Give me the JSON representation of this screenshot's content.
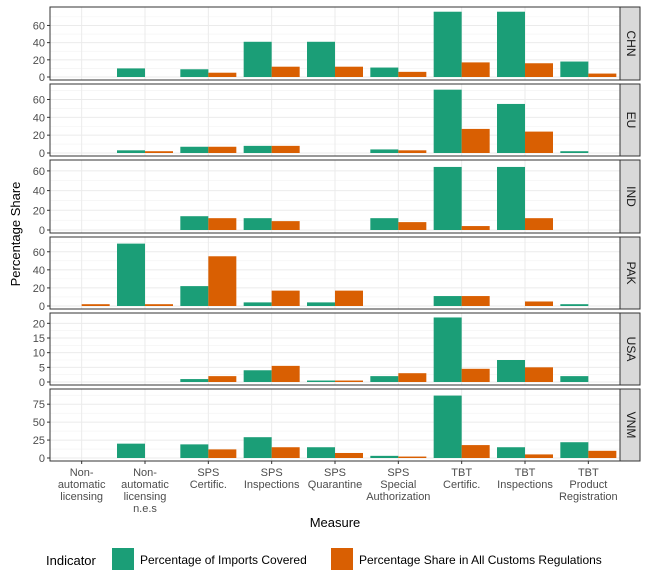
{
  "chart_data": {
    "type": "bar",
    "xlabel": "Measure",
    "ylabel": "Percentage Share",
    "categories": [
      [
        "Non-",
        "automatic",
        "licensing"
      ],
      [
        "Non-",
        "automatic",
        "licensing",
        "n.e.s"
      ],
      [
        "SPS",
        "Certific."
      ],
      [
        "SPS",
        "Inspections"
      ],
      [
        "SPS",
        "Quarantine"
      ],
      [
        "SPS",
        "Special",
        "Authorization"
      ],
      [
        "TBT",
        "Certific."
      ],
      [
        "TBT",
        "Inspections"
      ],
      [
        "TBT",
        "Product",
        "Registration"
      ]
    ],
    "legend": {
      "title": "Indicator",
      "position": "bottom",
      "entries": [
        "Percentage of Imports Covered",
        "Percentage Share in All Customs Regulations"
      ]
    },
    "colors": {
      "imports": "#1b9e77",
      "customs": "#d95f02"
    },
    "facets": [
      {
        "name": "CHN",
        "ylim": [
          0,
          78
        ],
        "ticks": [
          0,
          20,
          40,
          60
        ],
        "imports": [
          0,
          10,
          9,
          41,
          41,
          11,
          76,
          76,
          18
        ],
        "customs": [
          0,
          0,
          5,
          12,
          12,
          6,
          17,
          16,
          4
        ]
      },
      {
        "name": "EU",
        "ylim": [
          0,
          74
        ],
        "ticks": [
          0,
          20,
          40,
          60
        ],
        "imports": [
          0,
          3,
          7,
          8,
          0,
          4,
          71,
          55,
          2
        ],
        "customs": [
          0,
          2,
          7,
          8,
          0,
          3,
          27,
          24,
          0
        ]
      },
      {
        "name": "IND",
        "ylim": [
          0,
          68
        ],
        "ticks": [
          0,
          20,
          40,
          60
        ],
        "imports": [
          0,
          0,
          14,
          12,
          0,
          12,
          64,
          64,
          0
        ],
        "customs": [
          0,
          0,
          12,
          9,
          0,
          8,
          4,
          12,
          0
        ]
      },
      {
        "name": "PAK",
        "ylim": [
          0,
          73
        ],
        "ticks": [
          0,
          20,
          40,
          60
        ],
        "imports": [
          0,
          69,
          22,
          4,
          4,
          0,
          11,
          0,
          2
        ],
        "customs": [
          2,
          2,
          55,
          17,
          17,
          0,
          11,
          5,
          0
        ]
      },
      {
        "name": "USA",
        "ylim": [
          0,
          22.5
        ],
        "ticks": [
          0,
          5,
          10,
          15,
          20
        ],
        "imports": [
          0,
          0,
          1,
          4,
          0.5,
          2,
          22,
          7.5,
          2
        ],
        "customs": [
          0,
          0,
          2,
          5.5,
          0.5,
          3,
          4.5,
          5,
          0
        ]
      },
      {
        "name": "VNM",
        "ylim": [
          0,
          92
        ],
        "ticks": [
          0,
          25,
          50,
          75
        ],
        "imports": [
          0,
          20,
          19,
          29,
          15,
          3,
          87,
          15,
          22
        ],
        "customs": [
          0,
          0,
          12,
          15,
          7,
          2,
          18,
          5,
          10
        ]
      }
    ]
  }
}
